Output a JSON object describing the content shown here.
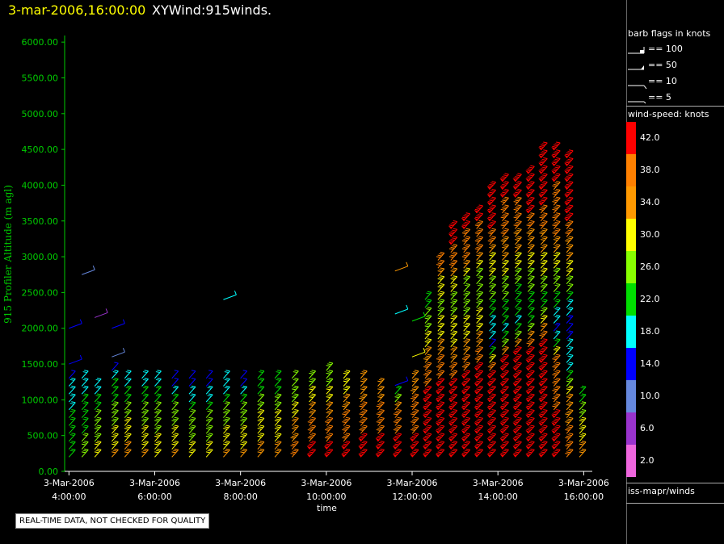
{
  "header": {
    "date": "3-mar-2006,16:00:00",
    "title": "XYWind:915winds."
  },
  "footer": {
    "qc_notice": "REAL-TIME DATA, NOT CHECKED FOR QUALITY"
  },
  "chart_data": {
    "type": "wind-barb time-height",
    "xlabel": "time",
    "ylabel": "915 Profiler Altitude (m agl)",
    "ylim": [
      0,
      6250
    ],
    "yticks": [
      "0.00",
      "500.00",
      "1000.00",
      "1500.00",
      "2000.00",
      "2500.00",
      "3000.00",
      "3500.00",
      "4000.00",
      "4500.00",
      "5000.00",
      "5500.00",
      "6000.00"
    ],
    "ytick_values": [
      0,
      500,
      1000,
      1500,
      2000,
      2500,
      3000,
      3500,
      4000,
      4500,
      5000,
      5500,
      6000
    ],
    "xlim_hours": [
      3.9,
      16.2
    ],
    "xtick_hours": [
      4,
      6,
      8,
      10,
      12,
      14,
      16
    ],
    "xticks": [
      {
        "date": "3-Mar-2006",
        "time": "4:00:00"
      },
      {
        "date": "3-Mar-2006",
        "time": "6:00:00"
      },
      {
        "date": "3-Mar-2006",
        "time": "8:00:00"
      },
      {
        "date": "3-Mar-2006",
        "time": "10:00:00"
      },
      {
        "date": "3-Mar-2006",
        "time": "12:00:00"
      },
      {
        "date": "3-Mar-2006",
        "time": "14:00:00"
      },
      {
        "date": "3-Mar-2006",
        "time": "16:00:00"
      }
    ],
    "profiles": [
      {
        "time": 4.0,
        "top": 1300,
        "speeds": [
          [
            200,
            22
          ],
          [
            800,
            20
          ],
          [
            1200,
            16
          ],
          [
            1500,
            12
          ],
          [
            2000,
            14
          ]
        ]
      },
      {
        "time": 4.3,
        "top": 1300,
        "speeds": [
          [
            200,
            26
          ],
          [
            800,
            22
          ],
          [
            1200,
            18
          ],
          [
            2750,
            8
          ]
        ]
      },
      {
        "time": 4.6,
        "top": 1250,
        "speeds": [
          [
            200,
            30
          ],
          [
            800,
            24
          ],
          [
            1200,
            18
          ],
          [
            2150,
            6
          ]
        ]
      },
      {
        "time": 5.0,
        "top": 1500,
        "speeds": [
          [
            200,
            32
          ],
          [
            800,
            26
          ],
          [
            1200,
            20
          ],
          [
            1600,
            10
          ],
          [
            2000,
            14
          ]
        ]
      },
      {
        "time": 5.3,
        "top": 1400,
        "speeds": [
          [
            200,
            34
          ],
          [
            800,
            26
          ],
          [
            1200,
            18
          ]
        ]
      },
      {
        "time": 5.7,
        "top": 1300,
        "speeds": [
          [
            200,
            32
          ],
          [
            800,
            26
          ],
          [
            1200,
            18
          ]
        ]
      },
      {
        "time": 6.0,
        "top": 1300,
        "speeds": [
          [
            200,
            30
          ],
          [
            800,
            26
          ],
          [
            1200,
            18
          ]
        ]
      },
      {
        "time": 6.4,
        "top": 1300,
        "speeds": [
          [
            200,
            32
          ],
          [
            800,
            26
          ],
          [
            1200,
            14
          ]
        ]
      },
      {
        "time": 6.8,
        "top": 1300,
        "speeds": [
          [
            200,
            30
          ],
          [
            800,
            24
          ],
          [
            1200,
            14
          ]
        ]
      },
      {
        "time": 7.2,
        "top": 1300,
        "speeds": [
          [
            200,
            30
          ],
          [
            800,
            24
          ],
          [
            1200,
            14
          ]
        ]
      },
      {
        "time": 7.6,
        "top": 1300,
        "speeds": [
          [
            200,
            32
          ],
          [
            800,
            26
          ],
          [
            1200,
            16
          ],
          [
            2400,
            18
          ]
        ]
      },
      {
        "time": 8.0,
        "top": 1300,
        "speeds": [
          [
            200,
            32
          ],
          [
            800,
            26
          ],
          [
            1200,
            14
          ]
        ]
      },
      {
        "time": 8.4,
        "top": 1300,
        "speeds": [
          [
            200,
            34
          ],
          [
            800,
            28
          ],
          [
            1200,
            20
          ]
        ]
      },
      {
        "time": 8.8,
        "top": 1300,
        "speeds": [
          [
            200,
            34
          ],
          [
            800,
            28
          ],
          [
            1200,
            22
          ]
        ]
      },
      {
        "time": 9.2,
        "top": 1350,
        "speeds": [
          [
            200,
            38
          ],
          [
            800,
            30
          ],
          [
            1200,
            24
          ]
        ]
      },
      {
        "time": 9.6,
        "top": 1400,
        "speeds": [
          [
            200,
            42
          ],
          [
            800,
            34
          ],
          [
            1200,
            26
          ]
        ]
      },
      {
        "time": 10.0,
        "top": 1500,
        "speeds": [
          [
            200,
            42
          ],
          [
            800,
            34
          ],
          [
            1200,
            26
          ]
        ]
      },
      {
        "time": 10.4,
        "top": 1350,
        "speeds": [
          [
            200,
            42
          ],
          [
            800,
            36
          ],
          [
            1200,
            30
          ]
        ]
      },
      {
        "time": 10.8,
        "top": 1300,
        "speeds": [
          [
            200,
            42
          ],
          [
            800,
            38
          ],
          [
            1200,
            32
          ]
        ]
      },
      {
        "time": 11.2,
        "top": 1200,
        "speeds": [
          [
            200,
            42
          ],
          [
            800,
            38
          ],
          [
            1100,
            32
          ]
        ]
      },
      {
        "time": 11.6,
        "top": 1100,
        "speeds": [
          [
            200,
            42
          ],
          [
            800,
            38
          ],
          [
            1200,
            14
          ],
          [
            2200,
            18
          ],
          [
            2800,
            34
          ]
        ]
      },
      {
        "time": 12.0,
        "top": 1300,
        "speeds": [
          [
            200,
            42
          ],
          [
            800,
            38
          ],
          [
            1200,
            34
          ],
          [
            1600,
            28
          ],
          [
            2100,
            22
          ]
        ]
      },
      {
        "time": 12.3,
        "top": 2400,
        "speeds": [
          [
            200,
            42
          ],
          [
            1000,
            42
          ],
          [
            1600,
            34
          ],
          [
            2000,
            26
          ],
          [
            2400,
            22
          ]
        ]
      },
      {
        "time": 12.6,
        "top": 3050,
        "speeds": [
          [
            200,
            42
          ],
          [
            1100,
            42
          ],
          [
            1700,
            34
          ],
          [
            2200,
            26
          ],
          [
            2600,
            30
          ],
          [
            3050,
            42
          ]
        ]
      },
      {
        "time": 12.9,
        "top": 3400,
        "speeds": [
          [
            200,
            42
          ],
          [
            1200,
            40
          ],
          [
            1800,
            30
          ],
          [
            2400,
            26
          ],
          [
            2900,
            38
          ],
          [
            3400,
            42
          ]
        ]
      },
      {
        "time": 13.2,
        "top": 3600,
        "speeds": [
          [
            200,
            42
          ],
          [
            1300,
            40
          ],
          [
            1900,
            30
          ],
          [
            2500,
            24
          ],
          [
            3000,
            38
          ],
          [
            3600,
            42
          ]
        ]
      },
      {
        "time": 13.5,
        "top": 3700,
        "speeds": [
          [
            200,
            42
          ],
          [
            1300,
            42
          ],
          [
            2000,
            30
          ],
          [
            2600,
            24
          ],
          [
            3100,
            38
          ],
          [
            3700,
            42
          ]
        ]
      },
      {
        "time": 13.8,
        "top": 4000,
        "speeds": [
          [
            200,
            42
          ],
          [
            1400,
            40
          ],
          [
            1700,
            14
          ],
          [
            2200,
            22
          ],
          [
            2900,
            30
          ],
          [
            3400,
            42
          ],
          [
            4000,
            42
          ]
        ]
      },
      {
        "time": 14.1,
        "top": 4100,
        "speeds": [
          [
            200,
            42
          ],
          [
            1500,
            42
          ],
          [
            1900,
            18
          ],
          [
            2500,
            26
          ],
          [
            3200,
            36
          ],
          [
            4100,
            42
          ]
        ]
      },
      {
        "time": 14.4,
        "top": 4150,
        "speeds": [
          [
            200,
            42
          ],
          [
            1600,
            42
          ],
          [
            2000,
            18
          ],
          [
            2700,
            26
          ],
          [
            3400,
            38
          ],
          [
            4150,
            42
          ]
        ]
      },
      {
        "time": 14.7,
        "top": 4250,
        "speeds": [
          [
            200,
            42
          ],
          [
            1700,
            42
          ],
          [
            2100,
            20
          ],
          [
            2900,
            30
          ],
          [
            3600,
            40
          ],
          [
            4250,
            42
          ]
        ]
      },
      {
        "time": 15.0,
        "top": 4500,
        "speeds": [
          [
            200,
            42
          ],
          [
            1800,
            40
          ],
          [
            2300,
            22
          ],
          [
            3000,
            32
          ],
          [
            3800,
            42
          ],
          [
            4500,
            42
          ]
        ]
      },
      {
        "time": 15.3,
        "top": 4550,
        "speeds": [
          [
            200,
            42
          ],
          [
            1500,
            38
          ],
          [
            1900,
            14
          ],
          [
            2600,
            26
          ],
          [
            3400,
            38
          ],
          [
            4550,
            42
          ]
        ]
      },
      {
        "time": 15.6,
        "top": 4450,
        "speeds": [
          [
            200,
            38
          ],
          [
            1000,
            34
          ],
          [
            1400,
            20
          ],
          [
            2000,
            14
          ],
          [
            2800,
            30
          ],
          [
            3600,
            42
          ],
          [
            4450,
            42
          ]
        ]
      },
      {
        "time": 15.9,
        "top": 1100,
        "speeds": [
          [
            200,
            34
          ],
          [
            600,
            30
          ],
          [
            1000,
            22
          ]
        ]
      }
    ]
  },
  "legend": {
    "barb_title": "barb flags in knots",
    "barbs": [
      {
        "label": "== 100",
        "icon": "barb-100-icon"
      },
      {
        "label": "== 50",
        "icon": "barb-50-icon"
      },
      {
        "label": "== 10",
        "icon": "barb-10-icon"
      },
      {
        "label": "== 5",
        "icon": "barb-5-icon"
      }
    ],
    "colorbar_title": "wind-speed: knots",
    "colorbar": [
      {
        "label": "42.0",
        "color": "#ff0000"
      },
      {
        "label": "38.0",
        "color": "#ff8000"
      },
      {
        "label": "34.0",
        "color": "#ff9900"
      },
      {
        "label": "30.0",
        "color": "#ffff00"
      },
      {
        "label": "26.0",
        "color": "#88ff00"
      },
      {
        "label": "22.0",
        "color": "#00dd00"
      },
      {
        "label": "18.0",
        "color": "#00ffff"
      },
      {
        "label": "14.0",
        "color": "#0000ff"
      },
      {
        "label": "10.0",
        "color": "#6688dd"
      },
      {
        "label": "6.0",
        "color": "#9933cc"
      },
      {
        "label": "2.0",
        "color": "#ee66dd"
      }
    ],
    "source": "iss-mapr/winds"
  }
}
